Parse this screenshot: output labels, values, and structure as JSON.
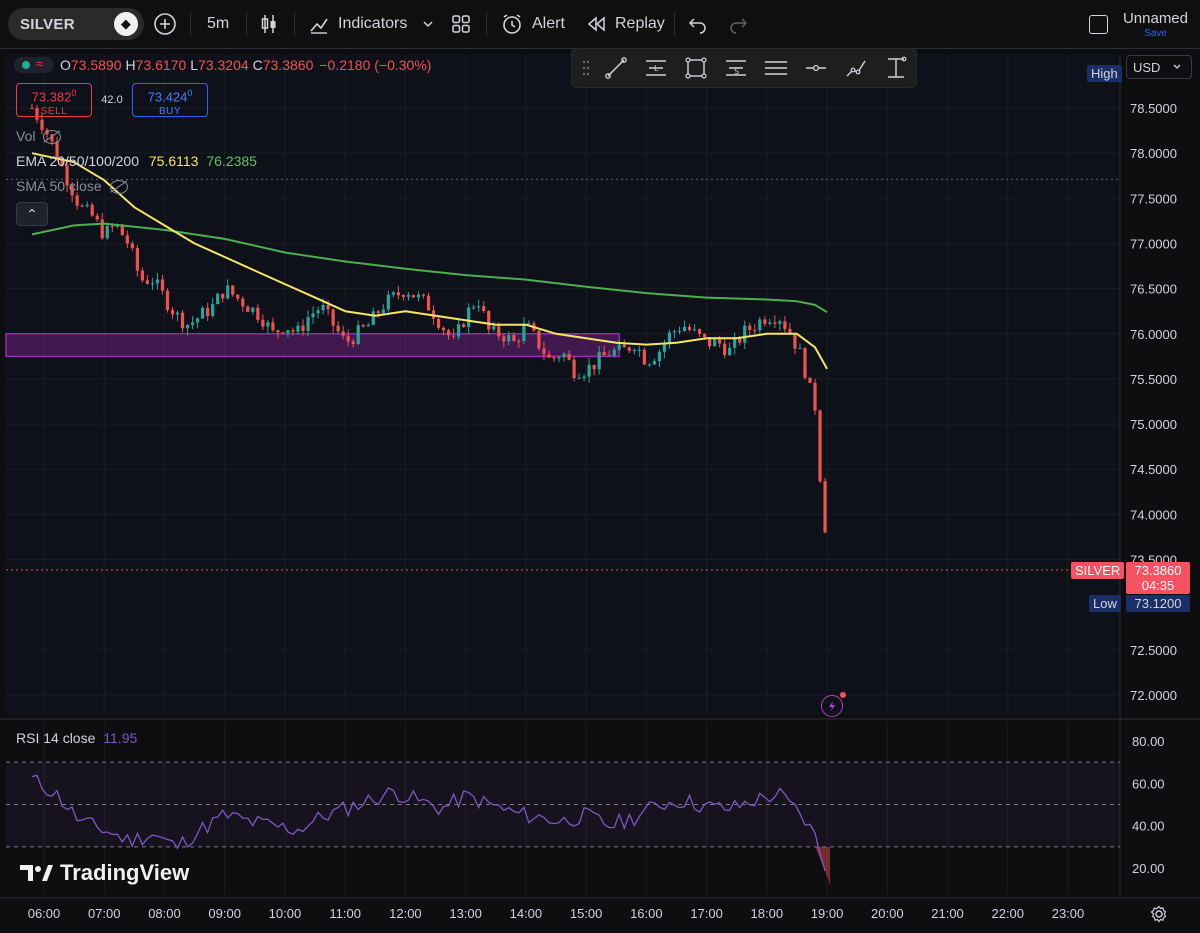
{
  "topbar": {
    "symbol": "SILVER",
    "interval": "5m",
    "indicators_label": "Indicators",
    "alert_label": "Alert",
    "replay_label": "Replay",
    "layout_name": "Unnamed",
    "save_label": "Save",
    "icons": [
      "plus-circle-icon",
      "candles-icon",
      "indicators-icon",
      "chevron-down-icon",
      "grid-icon",
      "alarm-icon",
      "replay-icon",
      "undo-icon",
      "redo-icon"
    ]
  },
  "legend": {
    "open_label": "O",
    "open": "73.5890",
    "high_label": "H",
    "high": "73.6170",
    "low_label": "L",
    "low": "73.3204",
    "close_label": "C",
    "close": "73.3860",
    "change": "−0.2180 (−0.30%)",
    "sell_price": "73.382",
    "sell_sup": "0",
    "sell_label": "SELL",
    "spread": "42.0",
    "buy_price": "73.424",
    "buy_sup": "0",
    "buy_label": "BUY",
    "vol_label": "Vol",
    "ema_label": "EMA 20/50/100/200",
    "ema_val1": "75.6113",
    "ema_val2": "76.2385",
    "sma_label": "SMA 50 close"
  },
  "price_axis": {
    "currency": "USD",
    "high_tag": "High",
    "low_tag": "Low",
    "low_value": "73.1200",
    "symbol_tag": "SILVER",
    "last_price": "73.3860",
    "countdown": "04:35",
    "ticks": [
      "78.5000",
      "78.0000",
      "77.5000",
      "77.0000",
      "76.5000",
      "76.0000",
      "75.5000",
      "75.0000",
      "74.5000",
      "74.0000",
      "73.5000",
      "72.5000",
      "72.0000"
    ]
  },
  "rsi": {
    "label": "RSI 14 close",
    "value": "11.95",
    "ticks": [
      "80.00",
      "60.00",
      "40.00",
      "20.00"
    ]
  },
  "time_axis": {
    "ticks": [
      "06:00",
      "07:00",
      "08:00",
      "09:00",
      "10:00",
      "11:00",
      "12:00",
      "13:00",
      "14:00",
      "15:00",
      "16:00",
      "17:00",
      "18:00",
      "19:00",
      "20:00",
      "21:00",
      "22:00",
      "23:00"
    ]
  },
  "brand": "TradingView",
  "colors": {
    "up": "#26a69a",
    "down": "#ef5350",
    "ema_yellow": "#f5e663",
    "ema_green": "#4caf50",
    "zone": "#9c27b0",
    "rsi_line": "#7e57c2",
    "accent": "#2962ff"
  },
  "chart_data": {
    "type": "candlestick",
    "price_range": [
      71.8,
      78.9
    ],
    "x_range_hours": [
      5.7,
      23.5
    ],
    "zone": [
      75.75,
      76.0
    ],
    "close_path": [
      [
        5.8,
        78.5
      ],
      [
        6.0,
        78.3
      ],
      [
        6.2,
        78.0
      ],
      [
        6.4,
        77.7
      ],
      [
        6.6,
        77.4
      ],
      [
        6.8,
        77.3
      ],
      [
        7.0,
        77.1
      ],
      [
        7.2,
        77.2
      ],
      [
        7.4,
        77.0
      ],
      [
        7.6,
        76.6
      ],
      [
        7.8,
        76.6
      ],
      [
        8.0,
        76.4
      ],
      [
        8.2,
        76.2
      ],
      [
        8.4,
        76.1
      ],
      [
        8.6,
        76.2
      ],
      [
        8.8,
        76.3
      ],
      [
        9.0,
        76.5
      ],
      [
        9.2,
        76.4
      ],
      [
        9.4,
        76.3
      ],
      [
        9.6,
        76.2
      ],
      [
        9.8,
        76.0
      ],
      [
        10.0,
        76.1
      ],
      [
        10.2,
        76.0
      ],
      [
        10.4,
        76.2
      ],
      [
        10.6,
        76.3
      ],
      [
        10.8,
        76.1
      ],
      [
        11.0,
        75.9
      ],
      [
        11.2,
        76.0
      ],
      [
        11.4,
        76.1
      ],
      [
        11.6,
        76.3
      ],
      [
        11.8,
        76.4
      ],
      [
        12.0,
        76.5
      ],
      [
        12.2,
        76.4
      ],
      [
        12.4,
        76.3
      ],
      [
        12.6,
        76.1
      ],
      [
        12.8,
        75.9
      ],
      [
        13.0,
        76.2
      ],
      [
        13.2,
        76.4
      ],
      [
        13.4,
        76.0
      ],
      [
        13.6,
        76.0
      ],
      [
        13.8,
        75.9
      ],
      [
        14.0,
        76.1
      ],
      [
        14.2,
        75.9
      ],
      [
        14.4,
        75.7
      ],
      [
        14.6,
        75.8
      ],
      [
        14.8,
        75.6
      ],
      [
        15.0,
        75.6
      ],
      [
        15.2,
        75.7
      ],
      [
        15.4,
        75.8
      ],
      [
        15.6,
        75.8
      ],
      [
        15.8,
        75.9
      ],
      [
        16.0,
        75.7
      ],
      [
        16.2,
        75.8
      ],
      [
        16.4,
        76.0
      ],
      [
        16.6,
        76.1
      ],
      [
        16.8,
        76.0
      ],
      [
        17.0,
        75.9
      ],
      [
        17.2,
        75.9
      ],
      [
        17.4,
        75.8
      ],
      [
        17.6,
        76.0
      ],
      [
        17.8,
        76.1
      ],
      [
        18.0,
        76.2
      ],
      [
        18.2,
        76.2
      ],
      [
        18.4,
        76.0
      ],
      [
        18.6,
        75.7
      ],
      [
        18.7,
        75.4
      ],
      [
        18.8,
        75.2
      ],
      [
        18.9,
        74.2
      ],
      [
        19.0,
        73.6
      ],
      [
        19.05,
        73.386
      ]
    ],
    "ema_yellow": [
      [
        5.8,
        78.0
      ],
      [
        6.5,
        77.9
      ],
      [
        7.0,
        77.7
      ],
      [
        7.5,
        77.4
      ],
      [
        8.0,
        77.2
      ],
      [
        8.5,
        77.0
      ],
      [
        9.0,
        76.85
      ],
      [
        9.5,
        76.7
      ],
      [
        10.0,
        76.55
      ],
      [
        10.5,
        76.4
      ],
      [
        11.0,
        76.25
      ],
      [
        11.5,
        76.2
      ],
      [
        12.0,
        76.25
      ],
      [
        12.5,
        76.2
      ],
      [
        13.0,
        76.15
      ],
      [
        13.5,
        76.1
      ],
      [
        14.0,
        76.1
      ],
      [
        14.5,
        76.0
      ],
      [
        15.0,
        75.95
      ],
      [
        15.5,
        75.9
      ],
      [
        16.0,
        75.88
      ],
      [
        16.5,
        75.9
      ],
      [
        17.0,
        75.95
      ],
      [
        17.5,
        75.95
      ],
      [
        18.0,
        76.0
      ],
      [
        18.5,
        76.0
      ],
      [
        18.8,
        75.85
      ],
      [
        19.0,
        75.6113
      ]
    ],
    "ema_green": [
      [
        5.8,
        77.1
      ],
      [
        6.5,
        77.2
      ],
      [
        7.0,
        77.22
      ],
      [
        8.0,
        77.15
      ],
      [
        9.0,
        77.05
      ],
      [
        10.0,
        76.9
      ],
      [
        11.0,
        76.8
      ],
      [
        12.0,
        76.72
      ],
      [
        13.0,
        76.65
      ],
      [
        14.0,
        76.6
      ],
      [
        15.0,
        76.52
      ],
      [
        16.0,
        76.45
      ],
      [
        17.0,
        76.4
      ],
      [
        18.0,
        76.38
      ],
      [
        18.5,
        76.36
      ],
      [
        18.8,
        76.32
      ],
      [
        19.0,
        76.2385
      ]
    ],
    "rsi_path": [
      [
        5.8,
        62
      ],
      [
        6.2,
        55
      ],
      [
        6.6,
        42
      ],
      [
        7.0,
        38
      ],
      [
        7.4,
        33
      ],
      [
        7.8,
        36
      ],
      [
        8.2,
        30
      ],
      [
        8.6,
        38
      ],
      [
        9.0,
        45
      ],
      [
        9.4,
        42
      ],
      [
        9.8,
        40
      ],
      [
        10.2,
        38
      ],
      [
        10.6,
        44
      ],
      [
        11.0,
        48
      ],
      [
        11.4,
        52
      ],
      [
        11.8,
        56
      ],
      [
        12.2,
        52
      ],
      [
        12.6,
        48
      ],
      [
        13.0,
        54
      ],
      [
        13.4,
        50
      ],
      [
        13.8,
        46
      ],
      [
        14.2,
        44
      ],
      [
        14.6,
        42
      ],
      [
        15.0,
        45
      ],
      [
        15.4,
        40
      ],
      [
        15.8,
        44
      ],
      [
        16.2,
        50
      ],
      [
        16.6,
        52
      ],
      [
        17.0,
        49
      ],
      [
        17.4,
        48
      ],
      [
        17.8,
        52
      ],
      [
        18.2,
        55
      ],
      [
        18.6,
        44
      ],
      [
        18.8,
        35
      ],
      [
        18.95,
        20
      ],
      [
        19.05,
        11.95
      ]
    ],
    "rsi_range": [
      0,
      90
    ],
    "rsi_band": [
      30,
      70
    ]
  }
}
